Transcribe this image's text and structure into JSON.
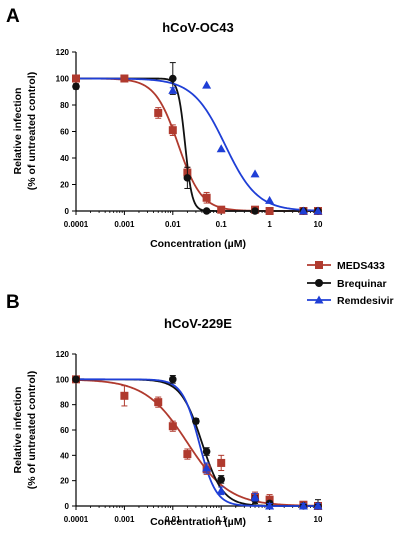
{
  "chart_data": [
    {
      "panel": "A",
      "type": "scatter",
      "title": "hCoV-OC43",
      "xlabel": "Concentration (µM)",
      "ylabel_lines": [
        "Relative infection",
        "(% of untreated control)"
      ],
      "xscale": "log",
      "xlim": [
        0.0001,
        10
      ],
      "ylim": [
        0,
        120
      ],
      "xticks": [
        "0.0001",
        "0.001",
        "0.01",
        "0.1",
        "1",
        "10"
      ],
      "yticks": [
        "0",
        "20",
        "40",
        "60",
        "80",
        "100",
        "120"
      ],
      "series": [
        {
          "name": "MEDS433",
          "color": "#b03a2e",
          "marker": "square",
          "points": [
            {
              "x": 0.0001,
              "y": 100,
              "err": 2
            },
            {
              "x": 0.001,
              "y": 100,
              "err": 2
            },
            {
              "x": 0.005,
              "y": 74,
              "err": 4
            },
            {
              "x": 0.01,
              "y": 61,
              "err": 4
            },
            {
              "x": 0.02,
              "y": 29,
              "err": 4
            },
            {
              "x": 0.05,
              "y": 10,
              "err": 4
            },
            {
              "x": 0.1,
              "y": 1,
              "err": 1
            },
            {
              "x": 0.5,
              "y": 1,
              "err": 1
            },
            {
              "x": 1,
              "y": 0,
              "err": 1
            },
            {
              "x": 5,
              "y": 0,
              "err": 0
            },
            {
              "x": 10,
              "y": 0,
              "err": 0
            }
          ],
          "fit": {
            "top": 100,
            "bottom": 0,
            "ic50": 0.013,
            "hill": 1.8
          }
        },
        {
          "name": "Brequinar",
          "color": "#111111",
          "marker": "circle",
          "points": [
            {
              "x": 0.0001,
              "y": 94,
              "err": 2
            },
            {
              "x": 0.01,
              "y": 100,
              "err": 12
            },
            {
              "x": 0.02,
              "y": 25,
              "err": 8
            },
            {
              "x": 0.05,
              "y": 0,
              "err": 0
            },
            {
              "x": 0.5,
              "y": 0,
              "err": 0
            },
            {
              "x": 5,
              "y": 0,
              "err": 0
            },
            {
              "x": 10,
              "y": 0,
              "err": 0
            }
          ],
          "fit": {
            "top": 100,
            "bottom": 0,
            "ic50": 0.018,
            "hill": 6
          }
        },
        {
          "name": "Remdesivir",
          "color": "#1f3fd6",
          "marker": "triangle",
          "points": [
            {
              "x": 0.01,
              "y": 91,
              "err": 2
            },
            {
              "x": 0.05,
              "y": 95,
              "err": 0
            },
            {
              "x": 0.1,
              "y": 47,
              "err": 0
            },
            {
              "x": 0.5,
              "y": 28,
              "err": 0
            },
            {
              "x": 1,
              "y": 8,
              "err": 0
            },
            {
              "x": 5,
              "y": 0,
              "err": 0
            },
            {
              "x": 10,
              "y": 0,
              "err": 0
            }
          ],
          "fit": {
            "top": 100,
            "bottom": 0,
            "ic50": 0.12,
            "hill": 1.3
          }
        }
      ]
    },
    {
      "panel": "B",
      "type": "scatter",
      "title": "hCoV-229E",
      "xlabel": "Concentration (µM)",
      "ylabel_lines": [
        "Relative infection",
        "(% of untreated control)"
      ],
      "xscale": "log",
      "xlim": [
        0.0001,
        10
      ],
      "ylim": [
        0,
        120
      ],
      "xticks": [
        "0.0001",
        "0.001",
        "0.01",
        "0.1",
        "1",
        "10"
      ],
      "yticks": [
        "0",
        "20",
        "40",
        "60",
        "80",
        "100",
        "120"
      ],
      "series": [
        {
          "name": "MEDS433",
          "color": "#b03a2e",
          "marker": "square",
          "points": [
            {
              "x": 0.0001,
              "y": 100,
              "err": 2
            },
            {
              "x": 0.001,
              "y": 87,
              "err": 8
            },
            {
              "x": 0.005,
              "y": 82,
              "err": 4
            },
            {
              "x": 0.01,
              "y": 63,
              "err": 4
            },
            {
              "x": 0.02,
              "y": 41,
              "err": 4
            },
            {
              "x": 0.05,
              "y": 29,
              "err": 4
            },
            {
              "x": 0.1,
              "y": 34,
              "err": 6
            },
            {
              "x": 0.5,
              "y": 7,
              "err": 4
            },
            {
              "x": 1,
              "y": 5,
              "err": 4
            },
            {
              "x": 5,
              "y": 1,
              "err": 2
            },
            {
              "x": 10,
              "y": 0,
              "err": 2
            }
          ],
          "fit": {
            "top": 100,
            "bottom": 0,
            "ic50": 0.02,
            "hill": 1.0
          }
        },
        {
          "name": "Brequinar",
          "color": "#111111",
          "marker": "circle",
          "points": [
            {
              "x": 0.0001,
              "y": 100,
              "err": 0
            },
            {
              "x": 0.01,
              "y": 100,
              "err": 3
            },
            {
              "x": 0.03,
              "y": 67,
              "err": 2
            },
            {
              "x": 0.05,
              "y": 43,
              "err": 3
            },
            {
              "x": 0.1,
              "y": 21,
              "err": 3
            },
            {
              "x": 0.5,
              "y": 5,
              "err": 3
            },
            {
              "x": 1,
              "y": 2,
              "err": 2
            },
            {
              "x": 5,
              "y": 0,
              "err": 2
            },
            {
              "x": 10,
              "y": 0,
              "err": 5
            }
          ],
          "fit": {
            "top": 100,
            "bottom": 0,
            "ic50": 0.04,
            "hill": 2.0
          }
        },
        {
          "name": "Remdesivir",
          "color": "#1f3fd6",
          "marker": "triangle",
          "points": [
            {
              "x": 0.05,
              "y": 30,
              "err": 4
            },
            {
              "x": 0.1,
              "y": 12,
              "err": 3
            },
            {
              "x": 0.5,
              "y": 7,
              "err": 3
            },
            {
              "x": 1,
              "y": 0,
              "err": 2
            },
            {
              "x": 5,
              "y": 0,
              "err": 2
            },
            {
              "x": 10,
              "y": 0,
              "err": 2
            }
          ],
          "fit": {
            "top": 100,
            "bottom": 0,
            "ic50": 0.035,
            "hill": 2.5
          }
        }
      ]
    }
  ]
}
